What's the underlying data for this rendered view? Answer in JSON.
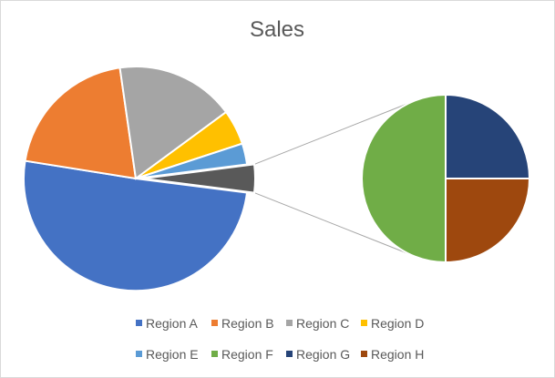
{
  "chart_data": {
    "type": "pie",
    "subtype": "pie-of-pie",
    "title": "Sales",
    "categories": [
      "Region A",
      "Region B",
      "Region C",
      "Region D",
      "Region E",
      "Region F",
      "Region G",
      "Region H"
    ],
    "values": [
      50,
      20,
      17,
      5,
      3,
      2,
      1,
      1
    ],
    "colors": [
      "#4472C4",
      "#ED7D31",
      "#A5A5A5",
      "#FFC000",
      "#5B9BD5",
      "#70AD47",
      "#264478",
      "#9E480E"
    ],
    "secondary_pie": {
      "categories": [
        "Region F",
        "Region G",
        "Region H"
      ],
      "values": [
        2,
        1,
        1
      ],
      "combined_color": "#595959"
    },
    "legend_position": "bottom"
  }
}
